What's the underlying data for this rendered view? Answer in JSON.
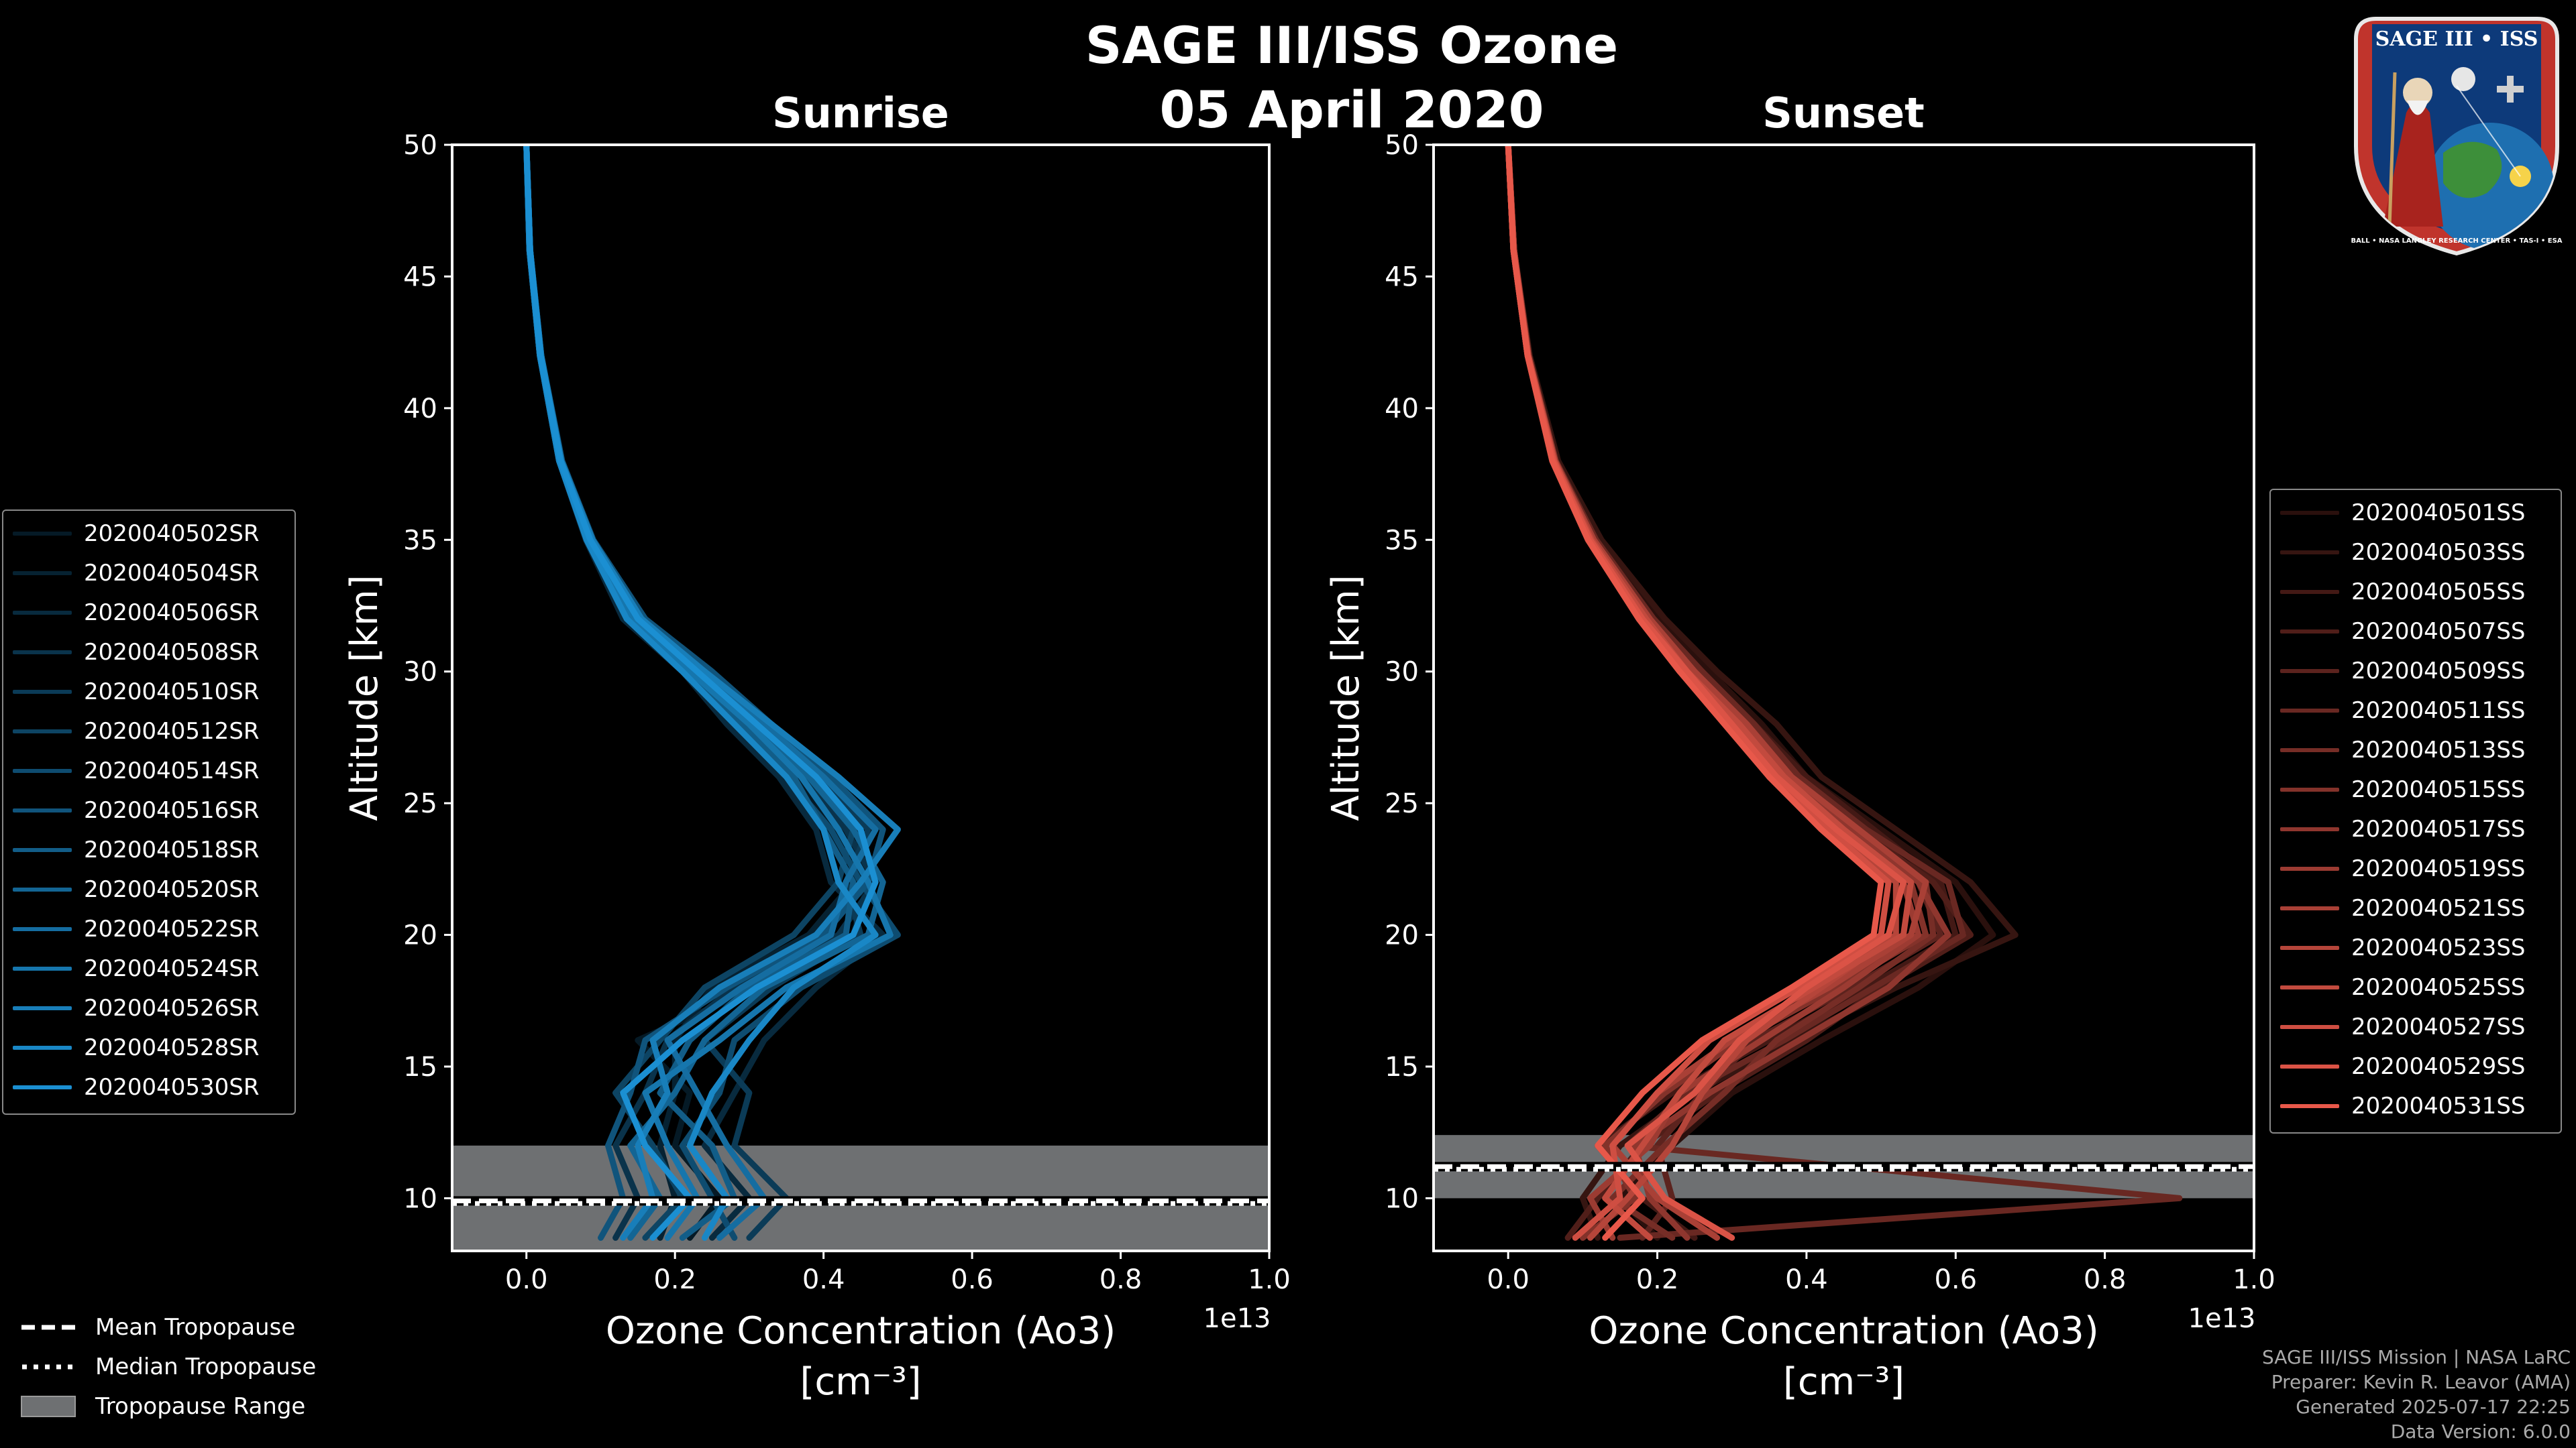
{
  "page": {
    "title": "SAGE III/ISS Ozone",
    "date": "05 April 2020"
  },
  "logo": {
    "top_text": "SAGE III • ISS",
    "bottom_text": "BALL • NASA LANGLEY RESEARCH CENTER • TAS-I • ESA"
  },
  "tropopause_legend": {
    "mean": "Mean Tropopause",
    "median": "Median Tropopause",
    "range": "Tropopause Range"
  },
  "credits": {
    "line1": "SAGE III/ISS Mission | NASA LaRC",
    "line2": "Preparer: Kevin R. Leavor (AMA)",
    "line3": "Generated 2025-07-17 22:25",
    "line4": "Data Version: 6.0.0"
  },
  "colors": {
    "sunrise": "#1b8fd2",
    "sunset": "#e8584a",
    "trop_range": "#6e7072",
    "axes": "#ffffff"
  },
  "chart_data": [
    {
      "type": "line",
      "title": "Sunrise",
      "xlabel": "Ozone Concentration (Ao3)",
      "xlabel_units": "[cm⁻³]",
      "x_offset_label": "1e13",
      "ylabel": "Altitude [km]",
      "xlim": [
        -0.1,
        1.0
      ],
      "ylim": [
        8,
        50
      ],
      "xticks": [
        0.0,
        0.2,
        0.4,
        0.6,
        0.8,
        1.0
      ],
      "xtick_labels": [
        "0.0",
        "0.2",
        "0.4",
        "0.6",
        "0.8",
        "1.0"
      ],
      "yticks": [
        10,
        15,
        20,
        25,
        30,
        35,
        40,
        45,
        50
      ],
      "ytick_labels": [
        "10",
        "15",
        "20",
        "25",
        "30",
        "35",
        "40",
        "45",
        "50"
      ],
      "tropopause": {
        "mean": 9.9,
        "median": 9.8,
        "range": [
          8.0,
          12.0
        ]
      },
      "altitudes": [
        8.5,
        10,
        12,
        14,
        16,
        18,
        20,
        22,
        24,
        26,
        28,
        30,
        32,
        35,
        38,
        42,
        46,
        50
      ],
      "series": [
        {
          "name": "2020040502SR",
          "values": [
            0.22,
            0.26,
            0.2,
            0.22,
            0.15,
            0.31,
            0.44,
            0.46,
            0.42,
            0.36,
            0.29,
            0.22,
            0.14,
            0.085,
            0.045,
            0.018,
            0.004,
            0.0
          ]
        },
        {
          "name": "2020040504SR",
          "values": [
            0.18,
            0.2,
            0.18,
            0.2,
            0.2,
            0.25,
            0.38,
            0.44,
            0.45,
            0.39,
            0.31,
            0.23,
            0.145,
            0.083,
            0.045,
            0.019,
            0.005,
            0.0
          ]
        },
        {
          "name": "2020040506SR",
          "values": [
            0.25,
            0.3,
            0.24,
            0.28,
            0.32,
            0.39,
            0.48,
            0.41,
            0.39,
            0.34,
            0.27,
            0.21,
            0.13,
            0.08,
            0.044,
            0.018,
            0.004,
            0.0
          ]
        },
        {
          "name": "2020040508SR",
          "values": [
            0.12,
            0.15,
            0.12,
            0.16,
            0.19,
            0.28,
            0.42,
            0.47,
            0.43,
            0.37,
            0.3,
            0.23,
            0.15,
            0.086,
            0.046,
            0.019,
            0.005,
            0.0
          ]
        },
        {
          "name": "2020040510SR",
          "values": [
            0.3,
            0.35,
            0.28,
            0.3,
            0.24,
            0.33,
            0.45,
            0.43,
            0.46,
            0.4,
            0.32,
            0.24,
            0.15,
            0.088,
            0.047,
            0.02,
            0.005,
            0.0
          ]
        },
        {
          "name": "2020040512SR",
          "values": [
            0.16,
            0.21,
            0.17,
            0.12,
            0.18,
            0.24,
            0.36,
            0.42,
            0.44,
            0.38,
            0.3,
            0.22,
            0.14,
            0.084,
            0.045,
            0.018,
            0.004,
            0.0
          ]
        },
        {
          "name": "2020040514SR",
          "values": [
            0.28,
            0.25,
            0.21,
            0.26,
            0.28,
            0.37,
            0.5,
            0.45,
            0.41,
            0.35,
            0.28,
            0.21,
            0.135,
            0.081,
            0.044,
            0.018,
            0.004,
            0.0
          ]
        },
        {
          "name": "2020040516SR",
          "values": [
            0.1,
            0.13,
            0.11,
            0.14,
            0.16,
            0.27,
            0.4,
            0.46,
            0.48,
            0.41,
            0.33,
            0.25,
            0.16,
            0.09,
            0.048,
            0.02,
            0.005,
            0.0
          ]
        },
        {
          "name": "2020040518SR",
          "values": [
            0.21,
            0.28,
            0.25,
            0.18,
            0.22,
            0.3,
            0.43,
            0.44,
            0.4,
            0.36,
            0.29,
            0.22,
            0.14,
            0.083,
            0.045,
            0.018,
            0.004,
            0.0
          ]
        },
        {
          "name": "2020040520SR",
          "values": [
            0.14,
            0.18,
            0.14,
            0.2,
            0.24,
            0.32,
            0.46,
            0.48,
            0.44,
            0.38,
            0.31,
            0.24,
            0.15,
            0.087,
            0.046,
            0.019,
            0.005,
            0.0
          ]
        },
        {
          "name": "2020040522SR",
          "values": [
            0.26,
            0.32,
            0.27,
            0.23,
            0.19,
            0.29,
            0.41,
            0.43,
            0.47,
            0.4,
            0.32,
            0.23,
            0.145,
            0.085,
            0.046,
            0.019,
            0.005,
            0.0
          ]
        },
        {
          "name": "2020040524SR",
          "values": [
            0.19,
            0.23,
            0.19,
            0.16,
            0.26,
            0.35,
            0.49,
            0.46,
            0.42,
            0.37,
            0.3,
            0.22,
            0.14,
            0.082,
            0.044,
            0.018,
            0.004,
            0.0
          ]
        },
        {
          "name": "2020040526SR",
          "values": [
            0.13,
            0.17,
            0.15,
            0.19,
            0.17,
            0.26,
            0.39,
            0.45,
            0.5,
            0.42,
            0.33,
            0.24,
            0.155,
            0.089,
            0.047,
            0.02,
            0.005,
            0.0
          ]
        },
        {
          "name": "2020040528SR",
          "values": [
            0.24,
            0.27,
            0.22,
            0.25,
            0.3,
            0.36,
            0.47,
            0.42,
            0.4,
            0.35,
            0.28,
            0.21,
            0.135,
            0.081,
            0.044,
            0.018,
            0.004,
            0.0
          ]
        },
        {
          "name": "2020040530SR",
          "values": [
            0.17,
            0.22,
            0.16,
            0.13,
            0.21,
            0.31,
            0.44,
            0.47,
            0.45,
            0.39,
            0.31,
            0.23,
            0.15,
            0.086,
            0.046,
            0.019,
            0.005,
            0.0
          ]
        }
      ]
    },
    {
      "type": "line",
      "title": "Sunset",
      "xlabel": "Ozone Concentration (Ao3)",
      "xlabel_units": "[cm⁻³]",
      "x_offset_label": "1e13",
      "ylabel": "Altitude [km]",
      "xlim": [
        -0.1,
        1.0
      ],
      "ylim": [
        8,
        50
      ],
      "xticks": [
        0.0,
        0.2,
        0.4,
        0.6,
        0.8,
        1.0
      ],
      "xtick_labels": [
        "0.0",
        "0.2",
        "0.4",
        "0.6",
        "0.8",
        "1.0"
      ],
      "yticks": [
        10,
        15,
        20,
        25,
        30,
        35,
        40,
        45,
        50
      ],
      "ytick_labels": [
        "10",
        "15",
        "20",
        "25",
        "30",
        "35",
        "40",
        "45",
        "50"
      ],
      "tropopause": {
        "mean": 11.2,
        "median": 11.1,
        "range": [
          10.0,
          12.4
        ]
      },
      "altitudes": [
        8.5,
        10,
        12,
        14,
        16,
        18,
        20,
        22,
        24,
        26,
        28,
        30,
        32,
        35,
        38,
        42,
        46,
        50
      ],
      "series": [
        {
          "name": "2020040501SS",
          "values": [
            0.2,
            0.15,
            0.22,
            0.3,
            0.42,
            0.55,
            0.65,
            0.6,
            0.5,
            0.4,
            0.34,
            0.27,
            0.2,
            0.12,
            0.065,
            0.028,
            0.008,
            0.0
          ]
        },
        {
          "name": "2020040503SS",
          "values": [
            0.12,
            0.1,
            0.15,
            0.25,
            0.38,
            0.52,
            0.68,
            0.62,
            0.52,
            0.42,
            0.36,
            0.28,
            0.21,
            0.125,
            0.067,
            0.029,
            0.008,
            0.0
          ]
        },
        {
          "name": "2020040505SS",
          "values": [
            0.25,
            0.18,
            0.12,
            0.22,
            0.35,
            0.48,
            0.6,
            0.58,
            0.49,
            0.4,
            0.33,
            0.26,
            0.195,
            0.118,
            0.064,
            0.028,
            0.008,
            0.0
          ]
        },
        {
          "name": "2020040507SS",
          "values": [
            0.08,
            0.12,
            0.18,
            0.28,
            0.4,
            0.5,
            0.62,
            0.57,
            0.47,
            0.38,
            0.32,
            0.25,
            0.19,
            0.115,
            0.063,
            0.027,
            0.008,
            0.0
          ]
        },
        {
          "name": "2020040509SS",
          "values": [
            0.18,
            0.22,
            0.2,
            0.26,
            0.33,
            0.46,
            0.58,
            0.55,
            0.46,
            0.37,
            0.31,
            0.25,
            0.185,
            0.112,
            0.062,
            0.027,
            0.007,
            0.0
          ]
        },
        {
          "name": "2020040511SS",
          "values": [
            0.15,
            0.9,
            0.16,
            0.24,
            0.37,
            0.49,
            0.61,
            0.59,
            0.48,
            0.39,
            0.33,
            0.26,
            0.195,
            0.118,
            0.064,
            0.028,
            0.008,
            0.0
          ]
        },
        {
          "name": "2020040513SS",
          "values": [
            0.22,
            0.14,
            0.21,
            0.29,
            0.36,
            0.47,
            0.57,
            0.56,
            0.47,
            0.38,
            0.32,
            0.25,
            0.19,
            0.115,
            0.063,
            0.027,
            0.008,
            0.0
          ]
        },
        {
          "name": "2020040515SS",
          "values": [
            0.1,
            0.17,
            0.13,
            0.21,
            0.31,
            0.44,
            0.56,
            0.54,
            0.45,
            0.37,
            0.31,
            0.24,
            0.18,
            0.11,
            0.061,
            0.027,
            0.007,
            0.0
          ]
        },
        {
          "name": "2020040517SS",
          "values": [
            0.24,
            0.19,
            0.17,
            0.27,
            0.39,
            0.51,
            0.59,
            0.55,
            0.46,
            0.38,
            0.32,
            0.25,
            0.19,
            0.114,
            0.063,
            0.027,
            0.008,
            0.0
          ]
        },
        {
          "name": "2020040519SS",
          "values": [
            0.14,
            0.11,
            0.19,
            0.23,
            0.34,
            0.45,
            0.55,
            0.53,
            0.44,
            0.36,
            0.3,
            0.24,
            0.18,
            0.11,
            0.06,
            0.026,
            0.007,
            0.0
          ]
        },
        {
          "name": "2020040521SS",
          "values": [
            0.28,
            0.2,
            0.14,
            0.2,
            0.3,
            0.43,
            0.54,
            0.56,
            0.47,
            0.38,
            0.32,
            0.25,
            0.19,
            0.115,
            0.063,
            0.027,
            0.008,
            0.0
          ]
        },
        {
          "name": "2020040523SS",
          "values": [
            0.11,
            0.16,
            0.22,
            0.26,
            0.32,
            0.42,
            0.52,
            0.52,
            0.44,
            0.36,
            0.3,
            0.24,
            0.18,
            0.11,
            0.06,
            0.026,
            0.007,
            0.0
          ]
        },
        {
          "name": "2020040525SS",
          "values": [
            0.19,
            0.13,
            0.18,
            0.23,
            0.29,
            0.41,
            0.53,
            0.54,
            0.45,
            0.37,
            0.31,
            0.24,
            0.185,
            0.112,
            0.062,
            0.027,
            0.007,
            0.0
          ]
        },
        {
          "name": "2020040527SS",
          "values": [
            0.09,
            0.15,
            0.14,
            0.2,
            0.27,
            0.39,
            0.5,
            0.51,
            0.43,
            0.35,
            0.3,
            0.23,
            0.175,
            0.108,
            0.06,
            0.026,
            0.007,
            0.0
          ]
        },
        {
          "name": "2020040529SS",
          "values": [
            0.3,
            0.21,
            0.16,
            0.25,
            0.31,
            0.4,
            0.51,
            0.53,
            0.44,
            0.36,
            0.3,
            0.24,
            0.18,
            0.11,
            0.061,
            0.026,
            0.007,
            0.0
          ]
        },
        {
          "name": "2020040531SS",
          "values": [
            0.13,
            0.18,
            0.12,
            0.18,
            0.26,
            0.38,
            0.49,
            0.5,
            0.42,
            0.35,
            0.29,
            0.23,
            0.175,
            0.107,
            0.059,
            0.026,
            0.007,
            0.0
          ]
        }
      ]
    }
  ]
}
